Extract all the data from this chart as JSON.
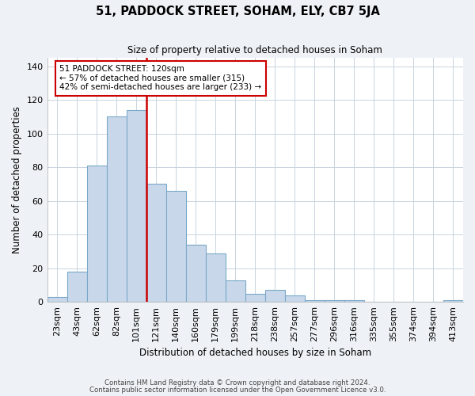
{
  "title": "51, PADDOCK STREET, SOHAM, ELY, CB7 5JA",
  "subtitle": "Size of property relative to detached houses in Soham",
  "xlabel": "Distribution of detached houses by size in Soham",
  "ylabel": "Number of detached properties",
  "bar_labels": [
    "23sqm",
    "43sqm",
    "62sqm",
    "82sqm",
    "101sqm",
    "121sqm",
    "140sqm",
    "160sqm",
    "179sqm",
    "199sqm",
    "218sqm",
    "238sqm",
    "257sqm",
    "277sqm",
    "296sqm",
    "316sqm",
    "335sqm",
    "355sqm",
    "374sqm",
    "394sqm",
    "413sqm"
  ],
  "bar_values": [
    3,
    18,
    81,
    110,
    114,
    70,
    66,
    34,
    29,
    13,
    5,
    7,
    4,
    1,
    1,
    1,
    0,
    0,
    0,
    0,
    1
  ],
  "bar_color": "#c8d8ea",
  "bar_edge_color": "#7ba8c8",
  "highlight_bar_index": 4,
  "highlight_line_color": "#cc0000",
  "annotation_text": "51 PADDOCK STREET: 120sqm\n← 57% of detached houses are smaller (315)\n42% of semi-detached houses are larger (233) →",
  "annotation_box_edgecolor": "#cc0000",
  "annotation_box_facecolor": "#ffffff",
  "ylim": [
    0,
    145
  ],
  "yticks": [
    0,
    20,
    40,
    60,
    80,
    100,
    120,
    140
  ],
  "footer_line1": "Contains HM Land Registry data © Crown copyright and database right 2024.",
  "footer_line2": "Contains public sector information licensed under the Open Government Licence v3.0.",
  "bg_color": "#eef2f6",
  "plot_bg_color": "#ffffff",
  "grid_color": "#c8d4de"
}
